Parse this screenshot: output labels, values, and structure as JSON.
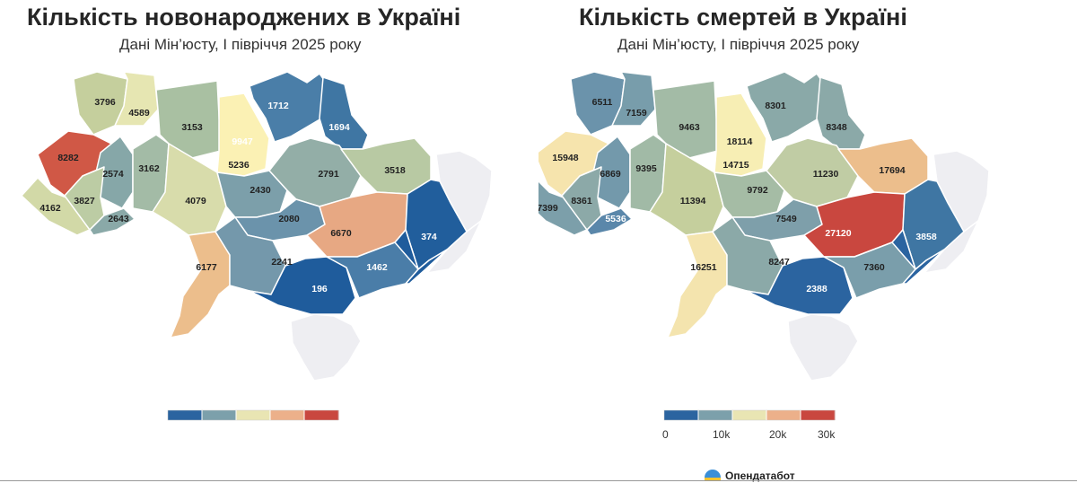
{
  "births_map": {
    "title": "Кількість новонароджених в Україні",
    "subtitle": "Дані Мін’юсту, І півріччя 2025 року",
    "regions": [
      {
        "name": "Volyn",
        "value": 3796,
        "color": "#c5cf9d"
      },
      {
        "name": "Rivne",
        "value": 4589,
        "color": "#e6e6b2"
      },
      {
        "name": "Zhytomyr",
        "value": 3153,
        "color": "#a9c0a2"
      },
      {
        "name": "Kyiv city",
        "value": 9947,
        "color": "#b9413b"
      },
      {
        "name": "Kyiv oblast",
        "value": 5236,
        "color": "#fbf1b4"
      },
      {
        "name": "Chernihiv",
        "value": 1712,
        "color": "#4a7ea8"
      },
      {
        "name": "Sumy",
        "value": 1694,
        "color": "#3f76a3"
      },
      {
        "name": "Lviv",
        "value": 8282,
        "color": "#d05846"
      },
      {
        "name": "Ternopil",
        "value": 2574,
        "color": "#86a7a8"
      },
      {
        "name": "Khmelnytskyi",
        "value": 3162,
        "color": "#a3bba6"
      },
      {
        "name": "Vinnytsia",
        "value": 4079,
        "color": "#d8dcab"
      },
      {
        "name": "Cherkasy",
        "value": 2430,
        "color": "#7c9faa"
      },
      {
        "name": "Poltava",
        "value": 2791,
        "color": "#93aea7"
      },
      {
        "name": "Kharkiv",
        "value": 3518,
        "color": "#b8c9a3"
      },
      {
        "name": "Zakarpattia",
        "value": 4162,
        "color": "#d2d9a7"
      },
      {
        "name": "Ivano-Frankivsk",
        "value": 3827,
        "color": "#bccca4"
      },
      {
        "name": "Chernivtsi",
        "value": 2643,
        "color": "#8aa9a8"
      },
      {
        "name": "Kirovohrad",
        "value": 2080,
        "color": "#6b93ab"
      },
      {
        "name": "Dnipropetrovsk",
        "value": 6670,
        "color": "#e7a883"
      },
      {
        "name": "Luhansk",
        "value": 374,
        "color": "#215e9c"
      },
      {
        "name": "Odesa",
        "value": 6177,
        "color": "#ecbe8c"
      },
      {
        "name": "Mykolaiv",
        "value": 2241,
        "color": "#7498ab"
      },
      {
        "name": "Kherson",
        "value": 196,
        "color": "#1f5c9c"
      },
      {
        "name": "Zaporizhzhia",
        "value": 1462,
        "color": "#4a7da8"
      },
      {
        "name": "Donetsk",
        "value": null,
        "color": "#1f5c9c"
      }
    ],
    "legend_colors": [
      "#2b64a0",
      "#7ca0ab",
      "#e9e5b3",
      "#ecb08a",
      "#c9473f"
    ]
  },
  "deaths_map": {
    "title": "Кількість смертей в Україні",
    "subtitle": "Дані Мін’юсту, І півріччя 2025 року",
    "regions": [
      {
        "name": "Volyn",
        "value": 6511,
        "color": "#6b93ab"
      },
      {
        "name": "Rivne",
        "value": 7159,
        "color": "#789dab"
      },
      {
        "name": "Zhytomyr",
        "value": 9463,
        "color": "#a3bba6"
      },
      {
        "name": "Kyiv city",
        "value": 18114,
        "color": "#e2aa88"
      },
      {
        "name": "Kyiv oblast",
        "value": 14715,
        "color": "#f7eeb4"
      },
      {
        "name": "Chernihiv",
        "value": 8301,
        "color": "#8aa9a8"
      },
      {
        "name": "Sumy",
        "value": 8348,
        "color": "#8ba9a8"
      },
      {
        "name": "Lviv",
        "value": 15948,
        "color": "#f6e4ad"
      },
      {
        "name": "Ternopil",
        "value": 6869,
        "color": "#7399ab"
      },
      {
        "name": "Khmelnytskyi",
        "value": 9395,
        "color": "#a1baa6"
      },
      {
        "name": "Vinnytsia",
        "value": 11394,
        "color": "#c5cf9d"
      },
      {
        "name": "Cherkasy",
        "value": 9792,
        "color": "#a5bca5"
      },
      {
        "name": "Poltava",
        "value": 11230,
        "color": "#c0cca4"
      },
      {
        "name": "Kharkiv",
        "value": 17694,
        "color": "#ecbe8c"
      },
      {
        "name": "Zakarpattia",
        "value": 7399,
        "color": "#7c9faa"
      },
      {
        "name": "Ivano-Frankivsk",
        "value": 8361,
        "color": "#8ca9a8"
      },
      {
        "name": "Chernivtsi",
        "value": 5536,
        "color": "#5a87aa"
      },
      {
        "name": "Kirovohrad",
        "value": 7549,
        "color": "#7e9faa"
      },
      {
        "name": "Dnipropetrovsk",
        "value": 27120,
        "color": "#c9473f"
      },
      {
        "name": "Luhansk",
        "value": 3858,
        "color": "#3f76a3"
      },
      {
        "name": "Odesa",
        "value": 16251,
        "color": "#f4e4ae"
      },
      {
        "name": "Mykolaiv",
        "value": 8247,
        "color": "#8ba9a8"
      },
      {
        "name": "Kherson",
        "value": 2388,
        "color": "#2b64a0"
      },
      {
        "name": "Zaporizhzhia",
        "value": 7360,
        "color": "#7a9eab"
      },
      {
        "name": "Donetsk",
        "value": null,
        "color": "#2b64a0"
      }
    ],
    "legend_colors": [
      "#2b64a0",
      "#7ca0ab",
      "#e9e5b3",
      "#ecb08a",
      "#c9473f"
    ],
    "legend_ticks": [
      "0",
      "10k",
      "20k",
      "30k"
    ]
  },
  "brand": {
    "name": "Опендатабот"
  },
  "colors": {
    "occupied": "#eeeef2",
    "background": "#ffffff"
  }
}
